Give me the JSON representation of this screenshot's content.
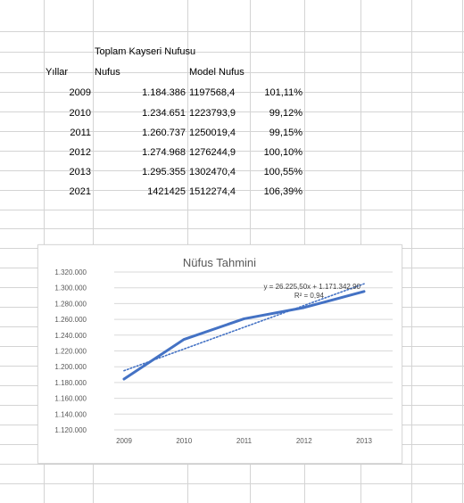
{
  "sheet": {
    "title_cell": "Toplam Kayseri Nufusu",
    "headers": {
      "years": "Yıllar",
      "population": "Nufus",
      "model": "Model Nufus"
    },
    "rows": [
      {
        "year": "2009",
        "population": "1.184.386",
        "model": "1197568,4",
        "ratio": "101,11%"
      },
      {
        "year": "2010",
        "population": "1.234.651",
        "model": "1223793,9",
        "ratio": "99,12%"
      },
      {
        "year": "2011",
        "population": "1.260.737",
        "model": "1250019,4",
        "ratio": "99,15%"
      },
      {
        "year": "2012",
        "population": "1.274.968",
        "model": "1276244,9",
        "ratio": "100,10%"
      },
      {
        "year": "2013",
        "population": "1.295.355",
        "model": "1302470,4",
        "ratio": "100,55%"
      },
      {
        "year": "2021",
        "population": "1421425",
        "model": "1512274,4",
        "ratio": "106,39%"
      }
    ]
  },
  "chart_data": {
    "type": "line",
    "title": "Nüfus Tahmini",
    "categories": [
      "2009",
      "2010",
      "2011",
      "2012",
      "2013"
    ],
    "series": [
      {
        "values": [
          1184386,
          1234651,
          1260737,
          1274968,
          1295355
        ],
        "color": "#4472c4"
      }
    ],
    "trendline": {
      "equation": "y = 26.225,50x + 1.171.342,90",
      "r_squared": "R² = 0,94",
      "values": [
        1197568.4,
        1223793.9,
        1250019.4,
        1276244.9,
        1302470.4
      ],
      "style": "dotted",
      "color": "#4472c4"
    },
    "ylim": [
      1120000,
      1320000
    ],
    "ytick_labels": [
      "1.120.000",
      "1.140.000",
      "1.160.000",
      "1.180.000",
      "1.200.000",
      "1.220.000",
      "1.240.000",
      "1.260.000",
      "1.280.000",
      "1.300.000",
      "1.320.000"
    ],
    "grid": true,
    "xlabel": "",
    "ylabel": ""
  },
  "colors": {
    "gridline": "#d4d4d4",
    "chart_grid": "#d9d9d9",
    "series": "#4472c4"
  }
}
